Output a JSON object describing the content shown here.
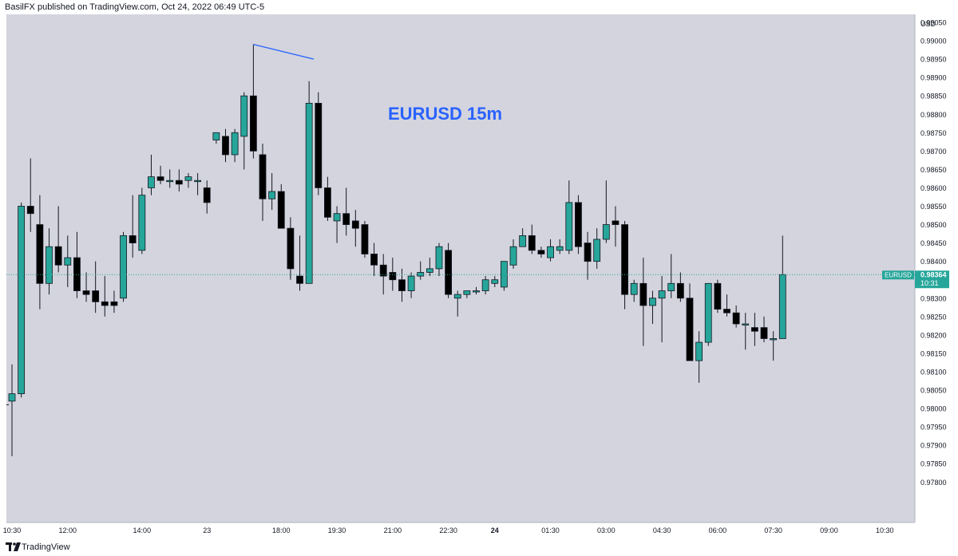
{
  "header": {
    "publisher_text": "BasilFX published on TradingView.com, Oct 24, 2022 06:49 UTC-5"
  },
  "footer": {
    "brand": "TradingView"
  },
  "colors": {
    "plot_background": "#d3d4de",
    "up_candle": "#26a69a",
    "down_candle": "#000000",
    "annotation_text": "#2962ff",
    "trend_line": "#2962ff",
    "last_price_line": "#26a69a"
  },
  "chart_data": {
    "type": "candlestick",
    "title": "EURUSD 15m",
    "currency_label": "USD",
    "y_range": [
      0.9775,
      0.991
    ],
    "y_ticks": [
      "0.99050",
      "0.99000",
      "0.98950",
      "0.98900",
      "0.98850",
      "0.98800",
      "0.98750",
      "0.98700",
      "0.98650",
      "0.98600",
      "0.98550",
      "0.98500",
      "0.98450",
      "0.98400",
      "0.98350",
      "0.98300",
      "0.98250",
      "0.98200",
      "0.98150",
      "0.98100",
      "0.98050",
      "0.98000",
      "0.97950",
      "0.97900",
      "0.97850",
      "0.97800"
    ],
    "x_ticks": [
      {
        "label": "10:30",
        "i": 0,
        "bold": false
      },
      {
        "label": "12:00",
        "i": 6,
        "bold": false
      },
      {
        "label": "14:00",
        "i": 14,
        "bold": false
      },
      {
        "label": "23",
        "i": 21,
        "bold": false
      },
      {
        "label": "18:00",
        "i": 29,
        "bold": false
      },
      {
        "label": "19:30",
        "i": 35,
        "bold": false
      },
      {
        "label": "21:00",
        "i": 41,
        "bold": false
      },
      {
        "label": "22:30",
        "i": 47,
        "bold": false
      },
      {
        "label": "24",
        "i": 52,
        "bold": true
      },
      {
        "label": "01:30",
        "i": 58,
        "bold": false
      },
      {
        "label": "03:00",
        "i": 64,
        "bold": false
      },
      {
        "label": "04:30",
        "i": 70,
        "bold": false
      },
      {
        "label": "06:00",
        "i": 76,
        "bold": false
      },
      {
        "label": "07:30",
        "i": 82,
        "bold": false
      },
      {
        "label": "09:00",
        "i": 88,
        "bold": false
      },
      {
        "label": "10:30",
        "i": 94,
        "bold": false
      }
    ],
    "candles": [
      {
        "o": 0.9802,
        "h": 0.9812,
        "l": 0.9787,
        "c": 0.9804
      },
      {
        "o": 0.9804,
        "h": 0.9856,
        "l": 0.9803,
        "c": 0.9855
      },
      {
        "o": 0.9855,
        "h": 0.9868,
        "l": 0.9848,
        "c": 0.9853
      },
      {
        "o": 0.985,
        "h": 0.9858,
        "l": 0.9827,
        "c": 0.9834
      },
      {
        "o": 0.9834,
        "h": 0.9849,
        "l": 0.9831,
        "c": 0.9844
      },
      {
        "o": 0.9844,
        "h": 0.9855,
        "l": 0.9837,
        "c": 0.9839
      },
      {
        "o": 0.9839,
        "h": 0.9847,
        "l": 0.9833,
        "c": 0.9841
      },
      {
        "o": 0.9841,
        "h": 0.9848,
        "l": 0.983,
        "c": 0.9832
      },
      {
        "o": 0.9832,
        "h": 0.9837,
        "l": 0.9829,
        "c": 0.9831
      },
      {
        "o": 0.9832,
        "h": 0.984,
        "l": 0.9826,
        "c": 0.9829
      },
      {
        "o": 0.9829,
        "h": 0.9836,
        "l": 0.9825,
        "c": 0.9828
      },
      {
        "o": 0.9829,
        "h": 0.9832,
        "l": 0.9826,
        "c": 0.9828
      },
      {
        "o": 0.983,
        "h": 0.9848,
        "l": 0.9829,
        "c": 0.9847
      },
      {
        "o": 0.9847,
        "h": 0.9858,
        "l": 0.9841,
        "c": 0.9845
      },
      {
        "o": 0.9843,
        "h": 0.986,
        "l": 0.9842,
        "c": 0.9858
      },
      {
        "o": 0.986,
        "h": 0.9869,
        "l": 0.9858,
        "c": 0.9863
      },
      {
        "o": 0.9863,
        "h": 0.9866,
        "l": 0.9861,
        "c": 0.9862
      },
      {
        "o": 0.9862,
        "h": 0.9865,
        "l": 0.986,
        "c": 0.9862
      },
      {
        "o": 0.9862,
        "h": 0.9865,
        "l": 0.9859,
        "c": 0.9861
      },
      {
        "o": 0.9862,
        "h": 0.9864,
        "l": 0.986,
        "c": 0.9863
      },
      {
        "o": 0.9862,
        "h": 0.9864,
        "l": 0.9858,
        "c": 0.9862
      },
      {
        "o": 0.986,
        "h": 0.9862,
        "l": 0.9853,
        "c": 0.9856
      },
      {
        "o": 0.9873,
        "h": 0.9875,
        "l": 0.9872,
        "c": 0.9875
      },
      {
        "o": 0.9874,
        "h": 0.9876,
        "l": 0.9867,
        "c": 0.9869
      },
      {
        "o": 0.9869,
        "h": 0.9876,
        "l": 0.9867,
        "c": 0.9875
      },
      {
        "o": 0.9874,
        "h": 0.9886,
        "l": 0.9865,
        "c": 0.9885
      },
      {
        "o": 0.9885,
        "h": 0.9899,
        "l": 0.9868,
        "c": 0.987
      },
      {
        "o": 0.9869,
        "h": 0.9872,
        "l": 0.9851,
        "c": 0.9857
      },
      {
        "o": 0.9857,
        "h": 0.9864,
        "l": 0.9854,
        "c": 0.9859
      },
      {
        "o": 0.9859,
        "h": 0.9861,
        "l": 0.9849,
        "c": 0.9849
      },
      {
        "o": 0.9849,
        "h": 0.9852,
        "l": 0.9835,
        "c": 0.9838
      },
      {
        "o": 0.9836,
        "h": 0.9847,
        "l": 0.9832,
        "c": 0.9834
      },
      {
        "o": 0.9834,
        "h": 0.9889,
        "l": 0.9834,
        "c": 0.9883
      },
      {
        "o": 0.9883,
        "h": 0.9886,
        "l": 0.9858,
        "c": 0.986
      },
      {
        "o": 0.986,
        "h": 0.9863,
        "l": 0.9851,
        "c": 0.9852
      },
      {
        "o": 0.9851,
        "h": 0.9855,
        "l": 0.9845,
        "c": 0.9853
      },
      {
        "o": 0.9853,
        "h": 0.986,
        "l": 0.9847,
        "c": 0.985
      },
      {
        "o": 0.9851,
        "h": 0.9854,
        "l": 0.9844,
        "c": 0.9849
      },
      {
        "o": 0.985,
        "h": 0.9851,
        "l": 0.9841,
        "c": 0.9842
      },
      {
        "o": 0.9842,
        "h": 0.9845,
        "l": 0.9836,
        "c": 0.9839
      },
      {
        "o": 0.9839,
        "h": 0.9842,
        "l": 0.9831,
        "c": 0.9836
      },
      {
        "o": 0.9837,
        "h": 0.9841,
        "l": 0.9832,
        "c": 0.9835
      },
      {
        "o": 0.9835,
        "h": 0.9838,
        "l": 0.9829,
        "c": 0.9832
      },
      {
        "o": 0.9832,
        "h": 0.9837,
        "l": 0.983,
        "c": 0.9836
      },
      {
        "o": 0.9836,
        "h": 0.984,
        "l": 0.9835,
        "c": 0.9837
      },
      {
        "o": 0.9837,
        "h": 0.9841,
        "l": 0.9836,
        "c": 0.9838
      },
      {
        "o": 0.9838,
        "h": 0.9845,
        "l": 0.9836,
        "c": 0.9844
      },
      {
        "o": 0.9843,
        "h": 0.9845,
        "l": 0.983,
        "c": 0.9831
      },
      {
        "o": 0.983,
        "h": 0.9832,
        "l": 0.9825,
        "c": 0.9831
      },
      {
        "o": 0.9831,
        "h": 0.9832,
        "l": 0.983,
        "c": 0.9832
      },
      {
        "o": 0.9832,
        "h": 0.9833,
        "l": 0.9831,
        "c": 0.9832
      },
      {
        "o": 0.9832,
        "h": 0.9836,
        "l": 0.9831,
        "c": 0.9835
      },
      {
        "o": 0.9834,
        "h": 0.9836,
        "l": 0.9833,
        "c": 0.9835
      },
      {
        "o": 0.9833,
        "h": 0.984,
        "l": 0.9832,
        "c": 0.984
      },
      {
        "o": 0.9839,
        "h": 0.9846,
        "l": 0.9838,
        "c": 0.9844
      },
      {
        "o": 0.9844,
        "h": 0.9849,
        "l": 0.9844,
        "c": 0.9847
      },
      {
        "o": 0.9847,
        "h": 0.985,
        "l": 0.9842,
        "c": 0.9843
      },
      {
        "o": 0.9843,
        "h": 0.9844,
        "l": 0.9841,
        "c": 0.9842
      },
      {
        "o": 0.9841,
        "h": 0.9846,
        "l": 0.984,
        "c": 0.9844
      },
      {
        "o": 0.9843,
        "h": 0.9846,
        "l": 0.9842,
        "c": 0.9844
      },
      {
        "o": 0.9843,
        "h": 0.9862,
        "l": 0.9842,
        "c": 0.9856
      },
      {
        "o": 0.9856,
        "h": 0.9858,
        "l": 0.9842,
        "c": 0.9844
      },
      {
        "o": 0.9845,
        "h": 0.9848,
        "l": 0.9835,
        "c": 0.984
      },
      {
        "o": 0.984,
        "h": 0.9849,
        "l": 0.9838,
        "c": 0.9846
      },
      {
        "o": 0.9846,
        "h": 0.9862,
        "l": 0.9845,
        "c": 0.985
      },
      {
        "o": 0.9851,
        "h": 0.9855,
        "l": 0.9844,
        "c": 0.985
      },
      {
        "o": 0.985,
        "h": 0.9851,
        "l": 0.9827,
        "c": 0.9831
      },
      {
        "o": 0.9831,
        "h": 0.9835,
        "l": 0.9829,
        "c": 0.9834
      },
      {
        "o": 0.9834,
        "h": 0.9841,
        "l": 0.9817,
        "c": 0.9828
      },
      {
        "o": 0.9828,
        "h": 0.9832,
        "l": 0.9823,
        "c": 0.983
      },
      {
        "o": 0.983,
        "h": 0.9836,
        "l": 0.9818,
        "c": 0.9832
      },
      {
        "o": 0.9832,
        "h": 0.9842,
        "l": 0.983,
        "c": 0.9834
      },
      {
        "o": 0.9834,
        "h": 0.9837,
        "l": 0.9829,
        "c": 0.983
      },
      {
        "o": 0.983,
        "h": 0.9834,
        "l": 0.9814,
        "c": 0.9813
      },
      {
        "o": 0.9813,
        "h": 0.9821,
        "l": 0.9807,
        "c": 0.9818
      },
      {
        "o": 0.9818,
        "h": 0.9834,
        "l": 0.9817,
        "c": 0.9834
      },
      {
        "o": 0.9834,
        "h": 0.9835,
        "l": 0.9826,
        "c": 0.9827
      },
      {
        "o": 0.9827,
        "h": 0.9831,
        "l": 0.9825,
        "c": 0.9826
      },
      {
        "o": 0.9826,
        "h": 0.9828,
        "l": 0.9822,
        "c": 0.9823
      },
      {
        "o": 0.9823,
        "h": 0.9826,
        "l": 0.9816,
        "c": 0.9823
      },
      {
        "o": 0.9822,
        "h": 0.9826,
        "l": 0.9817,
        "c": 0.9821
      },
      {
        "o": 0.9822,
        "h": 0.9825,
        "l": 0.9818,
        "c": 0.9819
      },
      {
        "o": 0.9819,
        "h": 0.9821,
        "l": 0.9813,
        "c": 0.9819
      },
      {
        "o": 0.9819,
        "h": 0.9847,
        "l": 0.9819,
        "c": 0.98364
      }
    ],
    "trend_line": {
      "from": {
        "i": 26,
        "price": 0.9899
      },
      "to": {
        "i": 32.5,
        "price": 0.9895
      }
    },
    "last_price": {
      "symbol": "EURUSD",
      "price": "0.98364",
      "countdown": "10:31",
      "value": 0.98364
    }
  }
}
